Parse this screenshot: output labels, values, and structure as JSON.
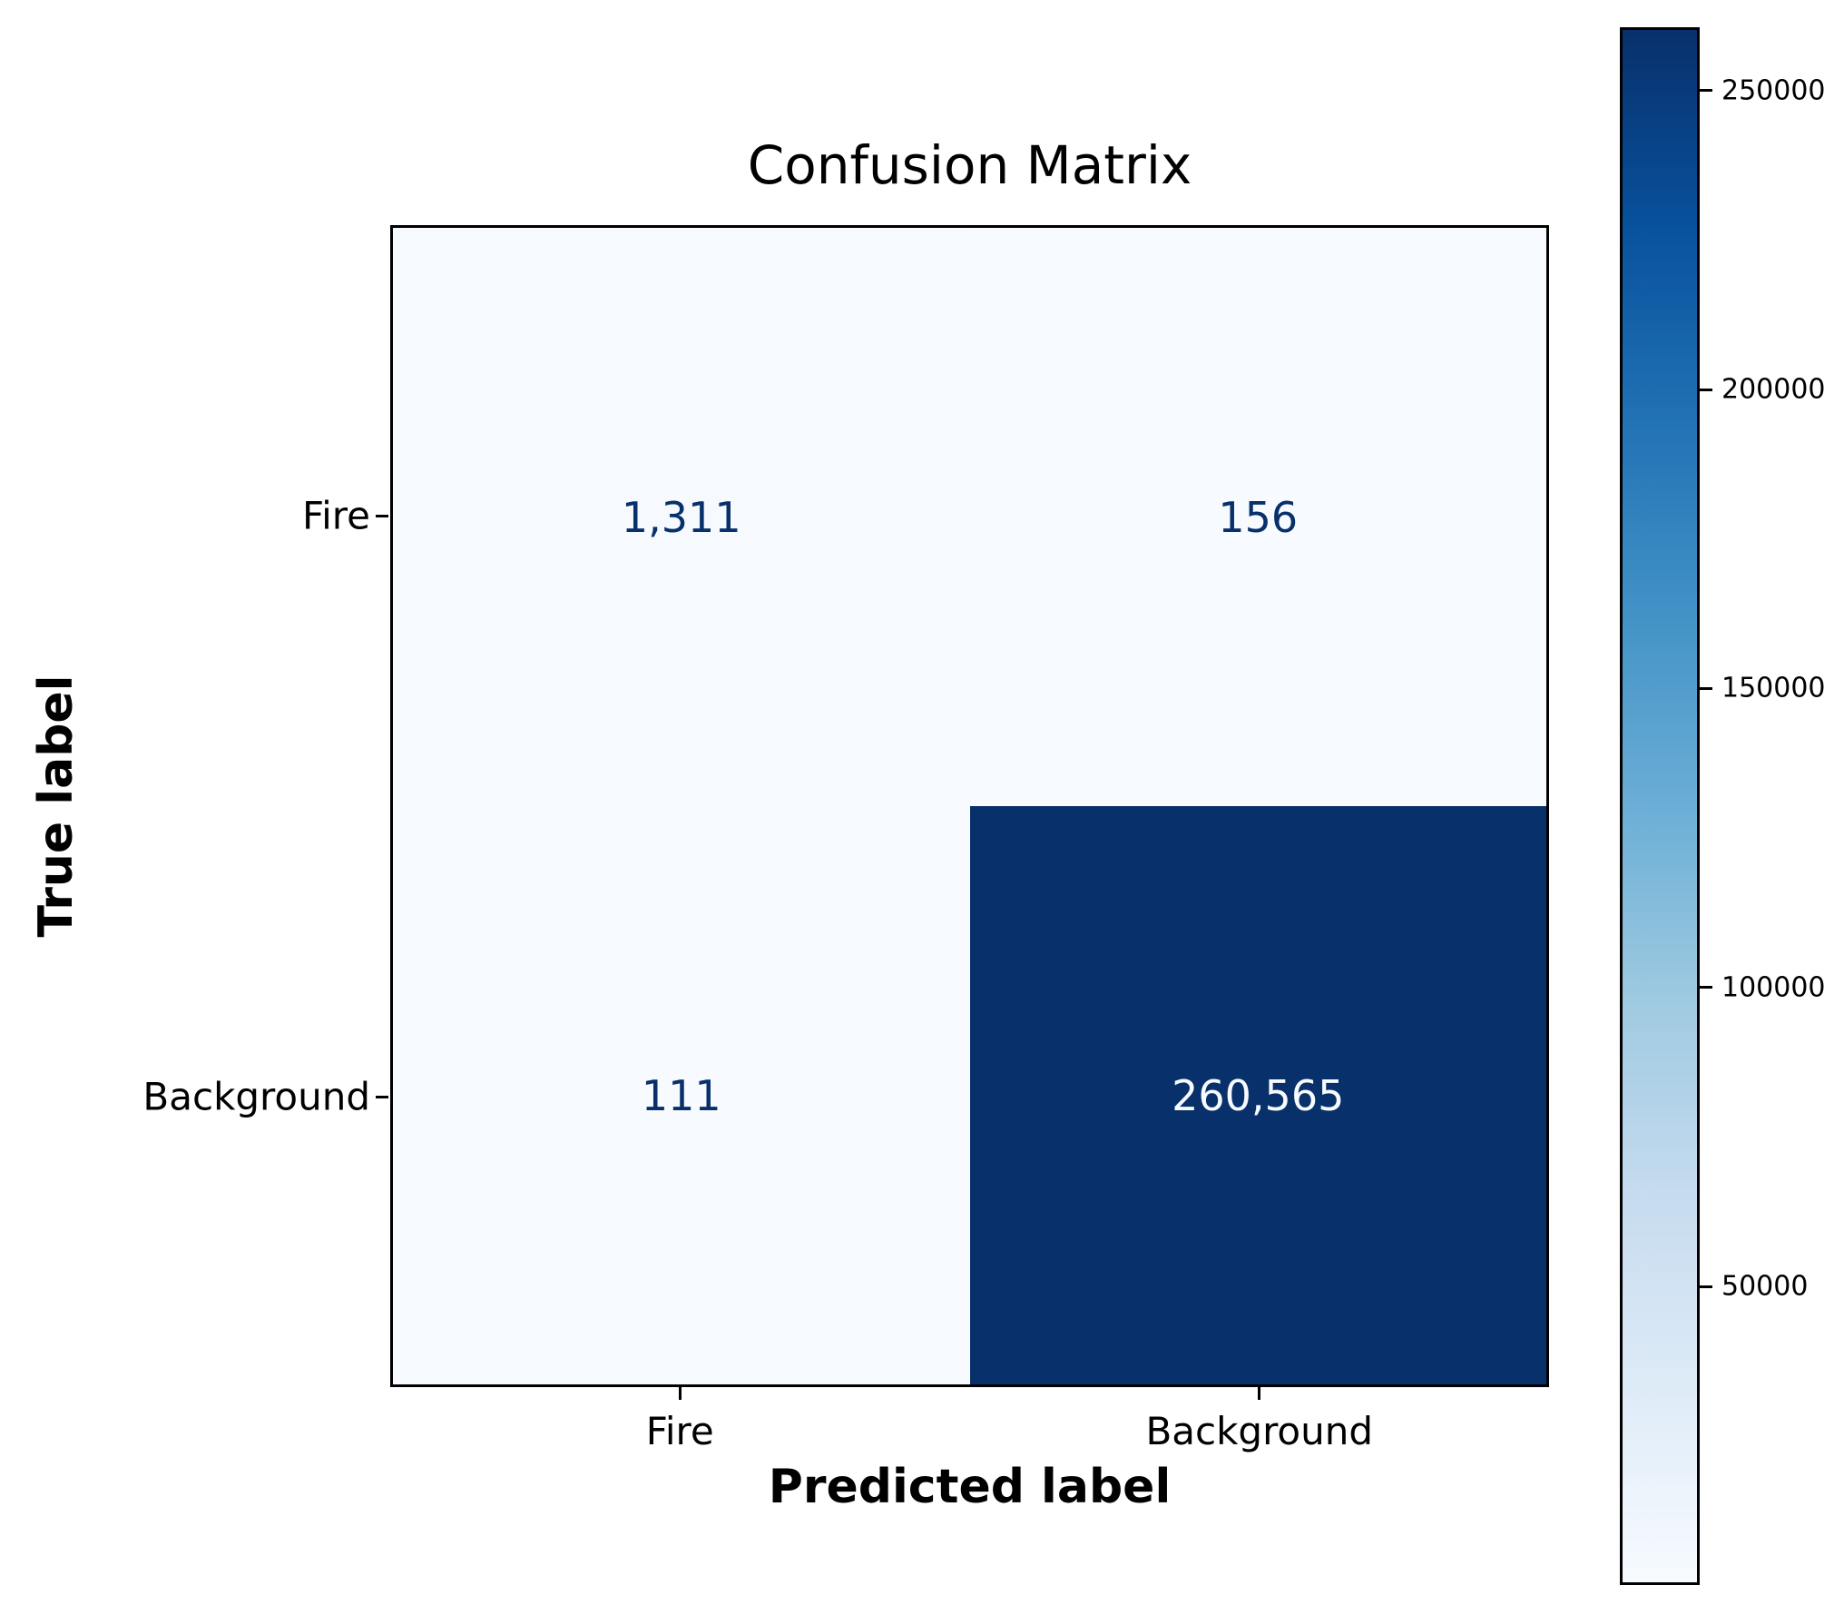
{
  "title": "Confusion Matrix",
  "chart_data": {
    "type": "heatmap",
    "title": "Confusion Matrix",
    "xlabel": "Predicted label",
    "ylabel": "True label",
    "x_categories": [
      "Fire",
      "Background"
    ],
    "y_categories": [
      "Fire",
      "Background"
    ],
    "matrix": [
      [
        1311,
        156
      ],
      [
        111,
        260565
      ]
    ],
    "cell_labels": [
      [
        "1,311",
        "156"
      ],
      [
        "111",
        "260,565"
      ]
    ],
    "vmin": 111,
    "vmax": 260565,
    "colorbar_ticks": [
      50000,
      100000,
      150000,
      200000,
      250000
    ],
    "colorbar_tick_labels": [
      "50000",
      "100000",
      "150000",
      "200000",
      "250000"
    ],
    "legend_position": "right-colorbar",
    "grid": false,
    "colormap": {
      "name": "Blues",
      "stops": [
        {
          "pos": 0.0,
          "color": "#f7fbff"
        },
        {
          "pos": 0.125,
          "color": "#deebf7"
        },
        {
          "pos": 0.25,
          "color": "#c6dbef"
        },
        {
          "pos": 0.375,
          "color": "#9ecae1"
        },
        {
          "pos": 0.5,
          "color": "#6baed6"
        },
        {
          "pos": 0.625,
          "color": "#4292c6"
        },
        {
          "pos": 0.75,
          "color": "#2171b5"
        },
        {
          "pos": 0.875,
          "color": "#08519c"
        },
        {
          "pos": 1.0,
          "color": "#08306b"
        }
      ]
    },
    "colors": {
      "dark_text": "#08306b",
      "light_text": "#f7fbff",
      "axis": "#000000",
      "background": "#ffffff"
    }
  }
}
